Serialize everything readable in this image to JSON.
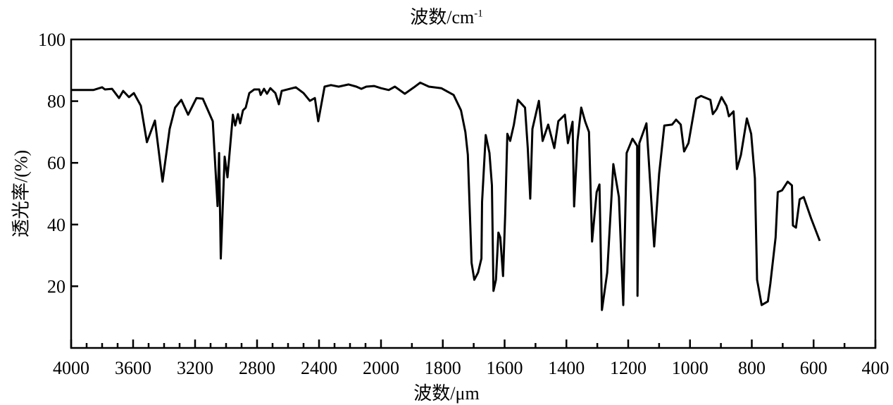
{
  "chart_data": {
    "type": "line",
    "title_top": "波数/cm",
    "title_top_superscript": "-1",
    "xlabel": "波数/μm",
    "ylabel": "透光率/(%)",
    "x_direction": "reversed",
    "x_scale_note_visible": false,
    "xlim": [
      4000,
      400
    ],
    "x_scale_break": 2000,
    "ylim": [
      0,
      100
    ],
    "x_ticks": [
      4000,
      3600,
      3200,
      2800,
      2400,
      2000,
      1800,
      1600,
      1400,
      1200,
      1000,
      800,
      600,
      400
    ],
    "y_ticks": [
      20,
      40,
      60,
      80,
      100
    ],
    "grid": false,
    "line_color": "#000000",
    "series": [
      {
        "x": [
          4000,
          3986,
          3857,
          3800,
          3782,
          3736,
          3691,
          3664,
          3627,
          3595,
          3550,
          3511,
          3459,
          3410,
          3364,
          3329,
          3289,
          3245,
          3191,
          3150,
          3086,
          3055,
          3045,
          3034,
          3018,
          3009,
          2991,
          2956,
          2941,
          2923,
          2909,
          2891,
          2873,
          2850,
          2818,
          2786,
          2777,
          2755,
          2736,
          2714,
          2682,
          2659,
          2641,
          2550,
          2500,
          2459,
          2427,
          2405,
          2364,
          2323,
          2273,
          2209,
          2159,
          2127,
          2095,
          2045,
          2000,
          1975,
          1955,
          1923,
          1893,
          1873,
          1845,
          1805,
          1765,
          1741,
          1727,
          1719,
          1711,
          1707,
          1698,
          1686,
          1675,
          1673,
          1661,
          1649,
          1641,
          1636,
          1628,
          1620,
          1614,
          1605,
          1598,
          1591,
          1582,
          1570,
          1557,
          1534,
          1525,
          1517,
          1510,
          1489,
          1477,
          1459,
          1439,
          1426,
          1405,
          1395,
          1380,
          1375,
          1364,
          1352,
          1339,
          1327,
          1317,
          1302,
          1293,
          1285,
          1268,
          1248,
          1230,
          1216,
          1205,
          1186,
          1171,
          1170,
          1164,
          1141,
          1116,
          1100,
          1083,
          1058,
          1045,
          1030,
          1019,
          1005,
          980,
          964,
          934,
          926,
          914,
          898,
          882,
          874,
          859,
          848,
          835,
          816,
          802,
          790,
          783,
          768,
          748,
          740,
          723,
          716,
          702,
          684,
          670,
          667,
          657,
          645,
          632,
          608,
          580
        ],
        "y": [
          83.6,
          83.6,
          83.6,
          84.5,
          83.8,
          84.0,
          81.0,
          83.3,
          81.3,
          82.6,
          78.5,
          66.7,
          73.7,
          53.9,
          71.0,
          77.9,
          80.4,
          75.6,
          81.0,
          80.8,
          73.5,
          46.0,
          63.2,
          29.0,
          50.0,
          62.0,
          55.3,
          75.6,
          72.1,
          75.8,
          72.8,
          77.0,
          77.9,
          82.6,
          83.8,
          83.8,
          82.0,
          84.0,
          82.4,
          84.2,
          82.6,
          79.0,
          83.3,
          84.5,
          82.6,
          80.1,
          81.0,
          73.5,
          84.7,
          85.2,
          84.7,
          85.4,
          84.7,
          84.0,
          84.7,
          84.9,
          84.2,
          83.6,
          84.7,
          82.4,
          84.5,
          86.0,
          84.7,
          84.2,
          82.0,
          77.0,
          70.0,
          62.6,
          39.7,
          27.6,
          22.1,
          24.4,
          29.0,
          47.3,
          69.0,
          63.2,
          52.7,
          18.5,
          22.1,
          37.4,
          35.8,
          23.3,
          43.6,
          69.4,
          67.1,
          72.4,
          80.4,
          77.9,
          64.8,
          48.4,
          71.0,
          80.1,
          67.1,
          72.4,
          64.8,
          73.5,
          75.6,
          66.4,
          73.3,
          45.9,
          67.1,
          77.9,
          73.3,
          70.0,
          34.5,
          50.5,
          53.0,
          12.3,
          24.4,
          59.6,
          48.9,
          13.9,
          63.2,
          67.8,
          65.5,
          16.9,
          66.4,
          72.8,
          32.9,
          56.4,
          72.1,
          72.4,
          74.0,
          72.4,
          63.7,
          66.4,
          80.8,
          81.7,
          80.4,
          75.8,
          77.4,
          81.3,
          78.5,
          75.1,
          76.7,
          58.0,
          62.6,
          74.4,
          69.4,
          55.0,
          22.1,
          13.9,
          15.1,
          20.8,
          35.8,
          50.5,
          51.1,
          53.9,
          52.7,
          39.7,
          39.0,
          48.2,
          48.9,
          42.0,
          34.7
        ]
      }
    ]
  }
}
